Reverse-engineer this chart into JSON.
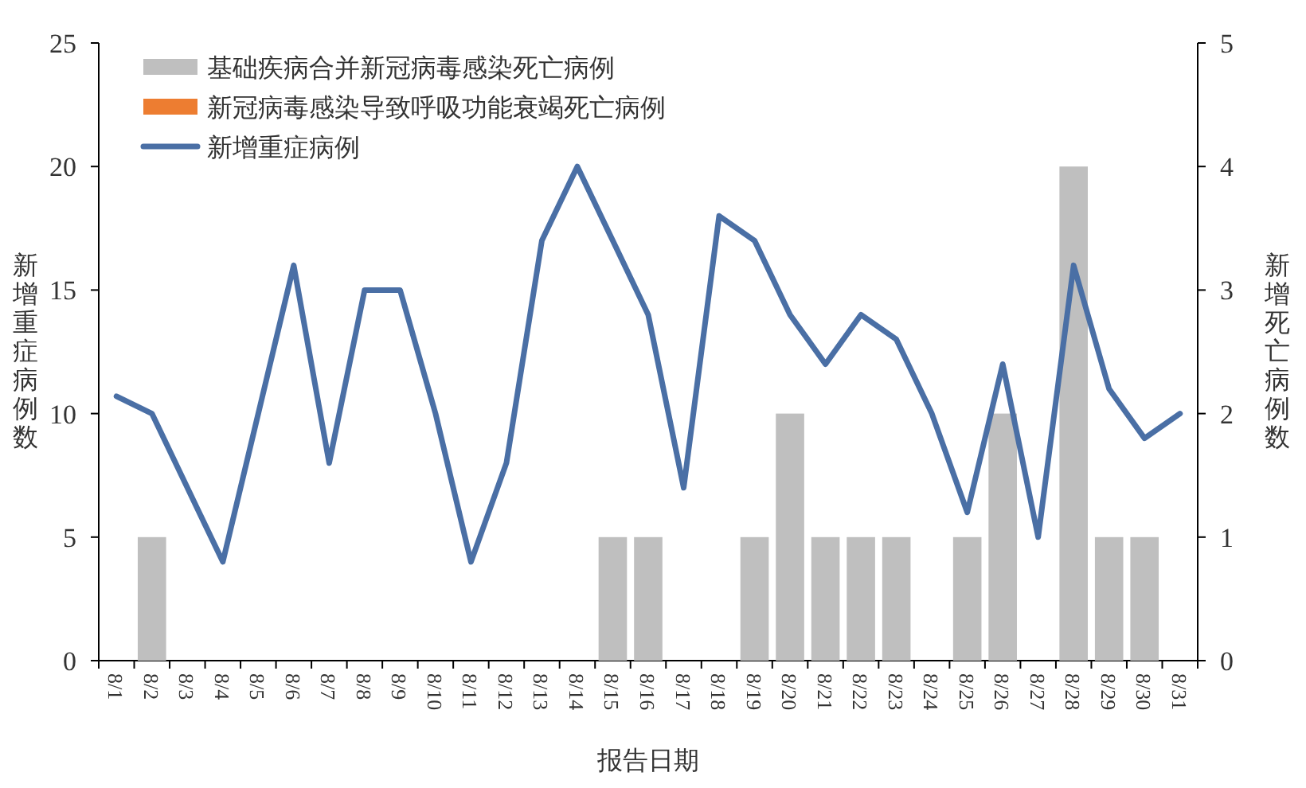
{
  "chart_data": {
    "type": "bar",
    "xlabel": "报告日期",
    "ylabel": "新增重症病例数",
    "y2label": "新增死亡病例数",
    "categories": [
      "8/1",
      "8/2",
      "8/3",
      "8/4",
      "8/5",
      "8/6",
      "8/7",
      "8/8",
      "8/9",
      "8/10",
      "8/11",
      "8/12",
      "8/13",
      "8/14",
      "8/15",
      "8/16",
      "8/17",
      "8/18",
      "8/19",
      "8/20",
      "8/21",
      "8/22",
      "8/23",
      "8/24",
      "8/25",
      "8/26",
      "8/27",
      "8/28",
      "8/29",
      "8/30",
      "8/31"
    ],
    "series": [
      {
        "name": "基础疾病合并新冠病毒感染死亡病例",
        "axis": "y2",
        "color": "#bfbfbf",
        "values": [
          0,
          1,
          0,
          0,
          0,
          0,
          0,
          0,
          0,
          0,
          0,
          0,
          0,
          0,
          1,
          1,
          0,
          0,
          1,
          2,
          1,
          1,
          1,
          0,
          1,
          2,
          0,
          4,
          1,
          1,
          0
        ]
      },
      {
        "name": "新冠病毒感染导致呼吸功能衰竭死亡病例",
        "axis": "y2",
        "color": "#ed7d31",
        "values": [
          0,
          0,
          0,
          0,
          0,
          0,
          0,
          0,
          0,
          0,
          0,
          0,
          0,
          0,
          0,
          0,
          0,
          0,
          0,
          0,
          0,
          0,
          0,
          0,
          0,
          0,
          0,
          0,
          0,
          0,
          0
        ]
      },
      {
        "name": "新增重症病例",
        "type": "line",
        "axis": "y",
        "color": "#4a6fa5",
        "values": [
          10.7,
          10,
          7,
          4,
          10,
          16,
          8,
          15,
          15,
          10,
          4,
          8,
          17,
          20,
          17,
          14,
          7,
          18,
          17,
          14,
          12,
          14,
          13,
          10,
          6,
          12,
          5,
          16,
          11,
          9,
          10
        ]
      }
    ],
    "ylim": [
      0,
      25
    ],
    "yticks": [
      0,
      5,
      10,
      15,
      20,
      25
    ],
    "y2lim": [
      0,
      5
    ],
    "y2ticks": [
      0,
      1,
      2,
      3,
      4,
      5
    ],
    "grid": false,
    "legend": "top left",
    "marker": "none",
    "line_style": "solid"
  }
}
